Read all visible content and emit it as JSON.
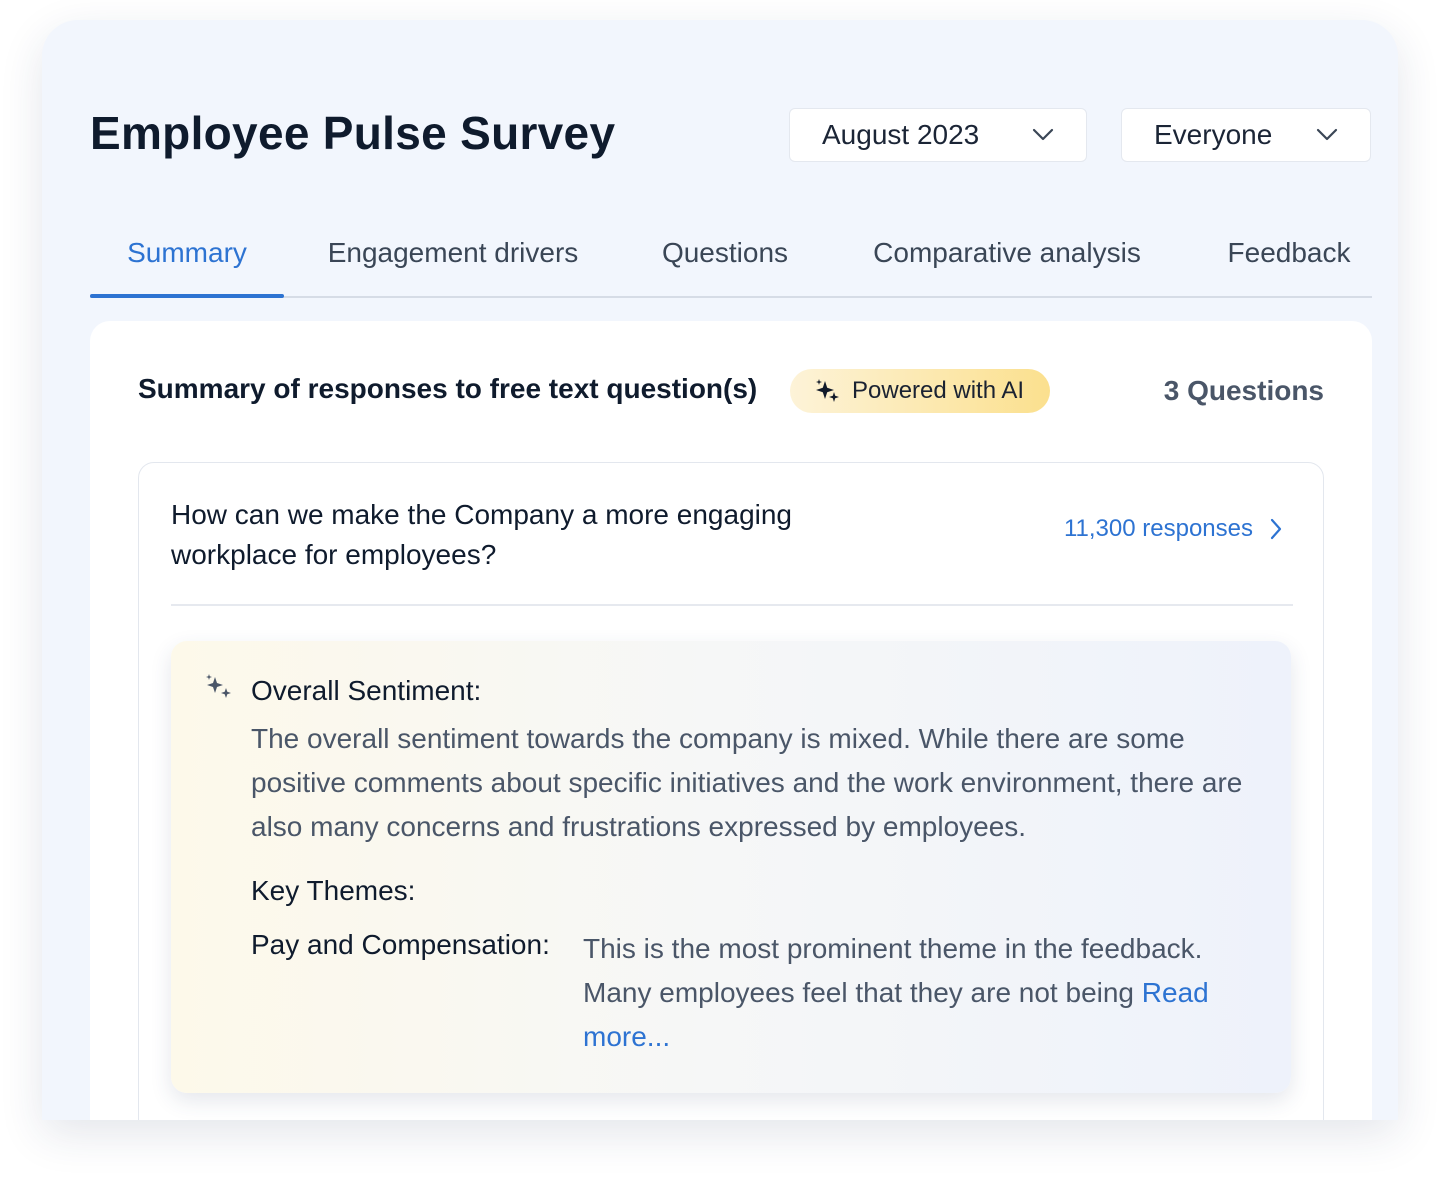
{
  "header": {
    "title": "Employee Pulse Survey",
    "month_filter": {
      "value": "August 2023",
      "icon": "chevron-down-icon"
    },
    "audience_filter": {
      "value": "Everyone",
      "icon": "chevron-down-icon"
    }
  },
  "tabs": [
    {
      "label": "Summary",
      "active": true
    },
    {
      "label": "Engagement drivers",
      "active": false
    },
    {
      "label": "Questions",
      "active": false
    },
    {
      "label": "Comparative analysis",
      "active": false
    },
    {
      "label": "Feedback",
      "active": false
    }
  ],
  "summary_card": {
    "heading": "Summary of responses to free text question(s)",
    "ai_badge": {
      "label": "Powered with AI",
      "icon": "sparkle-icon"
    },
    "question_count": "3 Questions",
    "question": {
      "text": "How can we make the Company a more engaging workplace for employees?",
      "responses_label": "11,300 responses",
      "responses_icon": "chevron-right-icon"
    },
    "ai_summary": {
      "icon": "sparkle-icon",
      "sentiment_title": "Overall Sentiment:",
      "sentiment_text": "The overall sentiment towards the company is mixed. While there are some positive comments about specific initiatives and the work environment, there are also many concerns and frustrations expressed by employees.",
      "themes_title": "Key Themes:",
      "themes": [
        {
          "name": "Pay and Compensation:",
          "text": "This is the most prominent theme in the feedback. Many employees feel that they are not being",
          "read_more": "Read more..."
        }
      ]
    }
  },
  "colors": {
    "accent": "#2d73d2",
    "background": "#f2f6fd",
    "badge_gradient_start": "#fdf3d8",
    "badge_gradient_end": "#fbe08e"
  }
}
